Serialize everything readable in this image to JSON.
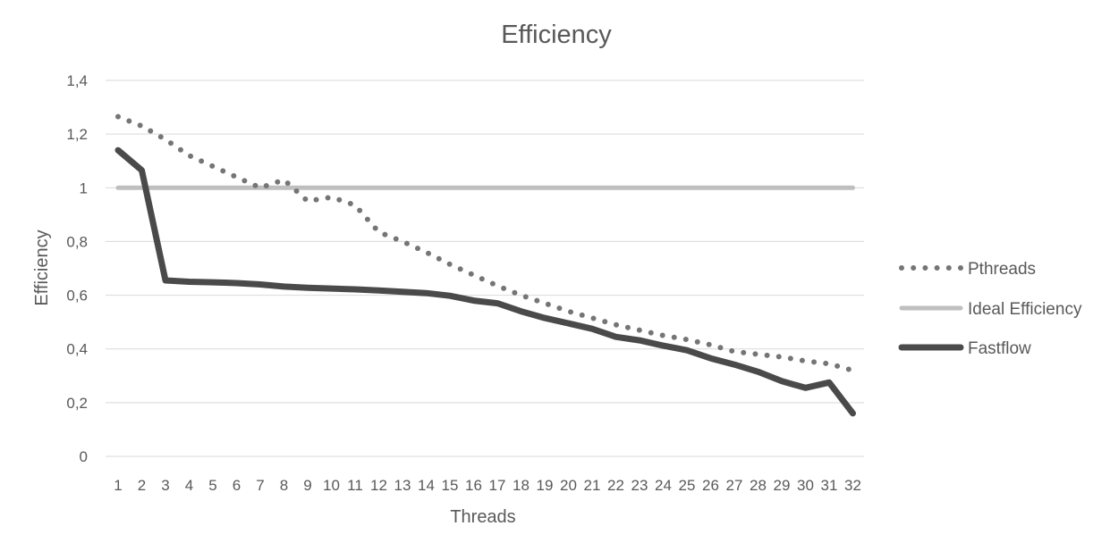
{
  "chart_data": {
    "type": "line",
    "title": "Efficiency",
    "xlabel": "Threads",
    "ylabel": "Efficiency",
    "ylim": [
      0,
      1.4
    ],
    "yticks": [
      "0",
      "0,2",
      "0,4",
      "0,6",
      "0,8",
      "1",
      "1,2",
      "1,4"
    ],
    "ytick_values": [
      0,
      0.2,
      0.4,
      0.6,
      0.8,
      1.0,
      1.2,
      1.4
    ],
    "categories": [
      "1",
      "2",
      "3",
      "4",
      "5",
      "6",
      "7",
      "8",
      "9",
      "10",
      "11",
      "12",
      "13",
      "14",
      "15",
      "16",
      "17",
      "18",
      "19",
      "20",
      "21",
      "22",
      "23",
      "24",
      "25",
      "26",
      "27",
      "28",
      "29",
      "30",
      "31",
      "32"
    ],
    "grid": true,
    "legend_position": "right",
    "series": [
      {
        "name": "Pthreads",
        "style": "dotted",
        "color": "#757575",
        "values": [
          1.265,
          1.23,
          1.18,
          1.12,
          1.08,
          1.04,
          1.0,
          1.03,
          0.95,
          0.965,
          0.935,
          0.835,
          0.8,
          0.76,
          0.715,
          0.675,
          0.635,
          0.6,
          0.57,
          0.54,
          0.515,
          0.49,
          0.47,
          0.45,
          0.435,
          0.415,
          0.39,
          0.38,
          0.37,
          0.355,
          0.345,
          0.32
        ]
      },
      {
        "name": "Ideal Efficiency",
        "style": "solid-light",
        "color": "#bfbfbf",
        "values": [
          1,
          1,
          1,
          1,
          1,
          1,
          1,
          1,
          1,
          1,
          1,
          1,
          1,
          1,
          1,
          1,
          1,
          1,
          1,
          1,
          1,
          1,
          1,
          1,
          1,
          1,
          1,
          1,
          1,
          1,
          1,
          1
        ]
      },
      {
        "name": "Fastflow",
        "style": "solid-thick",
        "color": "#4a4a4a",
        "values": [
          1.14,
          1.065,
          0.655,
          0.65,
          0.648,
          0.645,
          0.64,
          0.632,
          0.628,
          0.625,
          0.622,
          0.618,
          0.613,
          0.608,
          0.598,
          0.58,
          0.57,
          0.54,
          0.515,
          0.495,
          0.475,
          0.445,
          0.432,
          0.412,
          0.395,
          0.365,
          0.342,
          0.315,
          0.28,
          0.255,
          0.275,
          0.16
        ]
      }
    ]
  }
}
